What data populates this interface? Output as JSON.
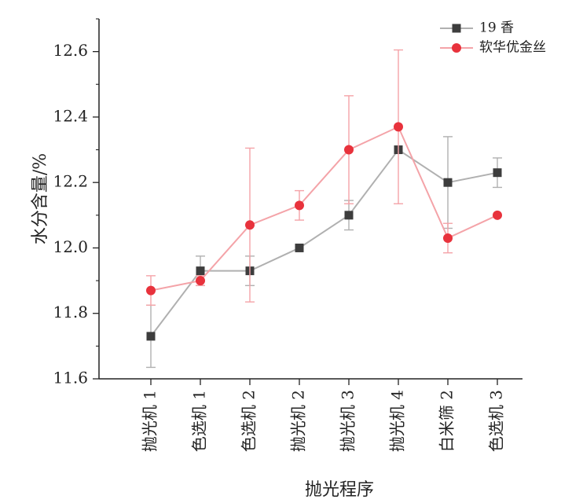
{
  "chart_data": {
    "type": "line",
    "title": "",
    "xlabel": "抛光程序",
    "ylabel": "水分含量/%",
    "ylim": [
      11.6,
      12.7
    ],
    "yticks": [
      "11.6",
      "11.8",
      "12.0",
      "12.2",
      "12.4",
      "12.6"
    ],
    "categories": [
      "抛光机 1",
      "色选机 1",
      "色选机 2",
      "抛光机 2",
      "抛光机 3",
      "抛光机 4",
      "白米筛 2",
      "色选机 3"
    ],
    "grid": false,
    "legend_position": "top-right",
    "series": [
      {
        "name": "19 香",
        "marker": "square",
        "color": "#3d3d3d",
        "line_color": "#b0b0b0",
        "values": [
          11.73,
          11.93,
          11.93,
          12.0,
          12.1,
          12.3,
          12.2,
          12.23
        ],
        "errors": [
          0.095,
          0.045,
          0.045,
          0.0,
          0.045,
          0.0,
          0.14,
          0.045
        ]
      },
      {
        "name": "软华优金丝",
        "marker": "circle",
        "color": "#e8323c",
        "line_color": "#f4a3a8",
        "values": [
          11.87,
          11.9,
          12.07,
          12.13,
          12.3,
          12.37,
          12.03,
          12.1
        ],
        "errors": [
          0.045,
          0.015,
          0.235,
          0.045,
          0.165,
          0.235,
          0.045,
          0.0
        ]
      }
    ]
  }
}
